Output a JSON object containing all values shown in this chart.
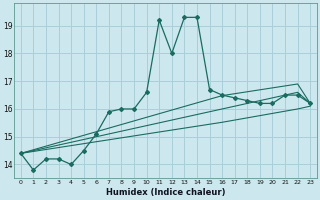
{
  "title": "",
  "xlabel": "Humidex (Indice chaleur)",
  "bg_color": "#cce8ee",
  "grid_color": "#aacfd8",
  "line_color": "#1a6b60",
  "x_data": [
    0,
    1,
    2,
    3,
    4,
    5,
    6,
    7,
    8,
    9,
    10,
    11,
    12,
    13,
    14,
    15,
    16,
    17,
    18,
    19,
    20,
    21,
    22,
    23
  ],
  "y_main": [
    14.4,
    13.8,
    14.2,
    14.2,
    14.0,
    14.5,
    15.1,
    15.9,
    16.0,
    16.0,
    16.6,
    19.2,
    18.0,
    19.3,
    19.3,
    16.7,
    16.5,
    16.4,
    16.3,
    16.2,
    16.2,
    16.5,
    16.5,
    16.2
  ],
  "y_line1": [
    14.4,
    14.47,
    14.54,
    14.61,
    14.68,
    14.75,
    14.82,
    14.89,
    14.96,
    15.03,
    15.1,
    15.17,
    15.24,
    15.31,
    15.38,
    15.45,
    15.52,
    15.6,
    15.68,
    15.76,
    15.84,
    15.92,
    16.0,
    16.1
  ],
  "y_line2": [
    14.4,
    14.5,
    14.6,
    14.7,
    14.8,
    14.9,
    15.0,
    15.1,
    15.2,
    15.3,
    15.4,
    15.5,
    15.6,
    15.7,
    15.8,
    15.9,
    16.0,
    16.1,
    16.2,
    16.3,
    16.4,
    16.5,
    16.6,
    16.2
  ],
  "y_line3": [
    14.4,
    14.53,
    14.66,
    14.79,
    14.92,
    15.05,
    15.18,
    15.31,
    15.44,
    15.57,
    15.7,
    15.83,
    15.96,
    16.09,
    16.22,
    16.35,
    16.48,
    16.55,
    16.62,
    16.69,
    16.76,
    16.83,
    16.9,
    16.2
  ],
  "ylim": [
    13.5,
    19.8
  ],
  "yticks": [
    14,
    15,
    16,
    17,
    18,
    19
  ],
  "xlim": [
    -0.5,
    23.5
  ]
}
